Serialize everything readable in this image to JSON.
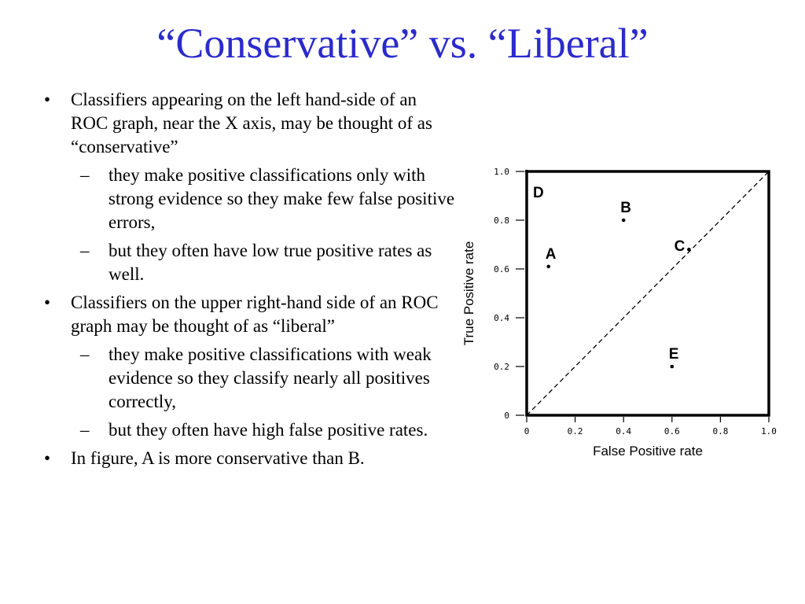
{
  "slide": {
    "title": "“Conservative” vs. “Liberal”"
  },
  "bullets": [
    {
      "level": 1,
      "marker": "•",
      "text": "Classifiers appearing on the left hand-side of an ROC graph, near the X axis, may be thought of as “conservative”"
    },
    {
      "level": 2,
      "marker": "–",
      "text": "they make positive classifications only with strong evidence so they make few false positive errors,"
    },
    {
      "level": 2,
      "marker": "–",
      "text": "but they often have low true positive rates as well."
    },
    {
      "level": 1,
      "marker": "•",
      "text": "Classifiers on the upper right-hand side of an ROC graph may be thought of as “liberal”"
    },
    {
      "level": 2,
      "marker": "–",
      "text": "they make positive classifications with weak evidence so they classify nearly all positives correctly,"
    },
    {
      "level": 2,
      "marker": "–",
      "text": "but they often have high false positive rates."
    },
    {
      "level": 1,
      "marker": "•",
      "text": "In figure, A is more conservative than B."
    }
  ],
  "chart_data": {
    "type": "scatter",
    "title": "",
    "xlabel": "False Positive rate",
    "ylabel": "True Positive rate",
    "xlim": [
      0,
      1
    ],
    "ylim": [
      0,
      1
    ],
    "x_ticks": [
      "0",
      "0.2",
      "0.4",
      "0.6",
      "0.8",
      "1.0"
    ],
    "y_ticks": [
      "0",
      "0.2",
      "0.4",
      "0.6",
      "0.8",
      "1.0"
    ],
    "grid": false,
    "reference_line": {
      "style": "dashed",
      "from": [
        0,
        0
      ],
      "to": [
        1,
        1
      ]
    },
    "points": [
      {
        "label": "A",
        "x": 0.09,
        "y": 0.61
      },
      {
        "label": "B",
        "x": 0.4,
        "y": 0.8
      },
      {
        "label": "C",
        "x": 0.67,
        "y": 0.68
      },
      {
        "label": "D",
        "x": 0.0,
        "y": 1.0
      },
      {
        "label": "E",
        "x": 0.6,
        "y": 0.2
      }
    ]
  }
}
